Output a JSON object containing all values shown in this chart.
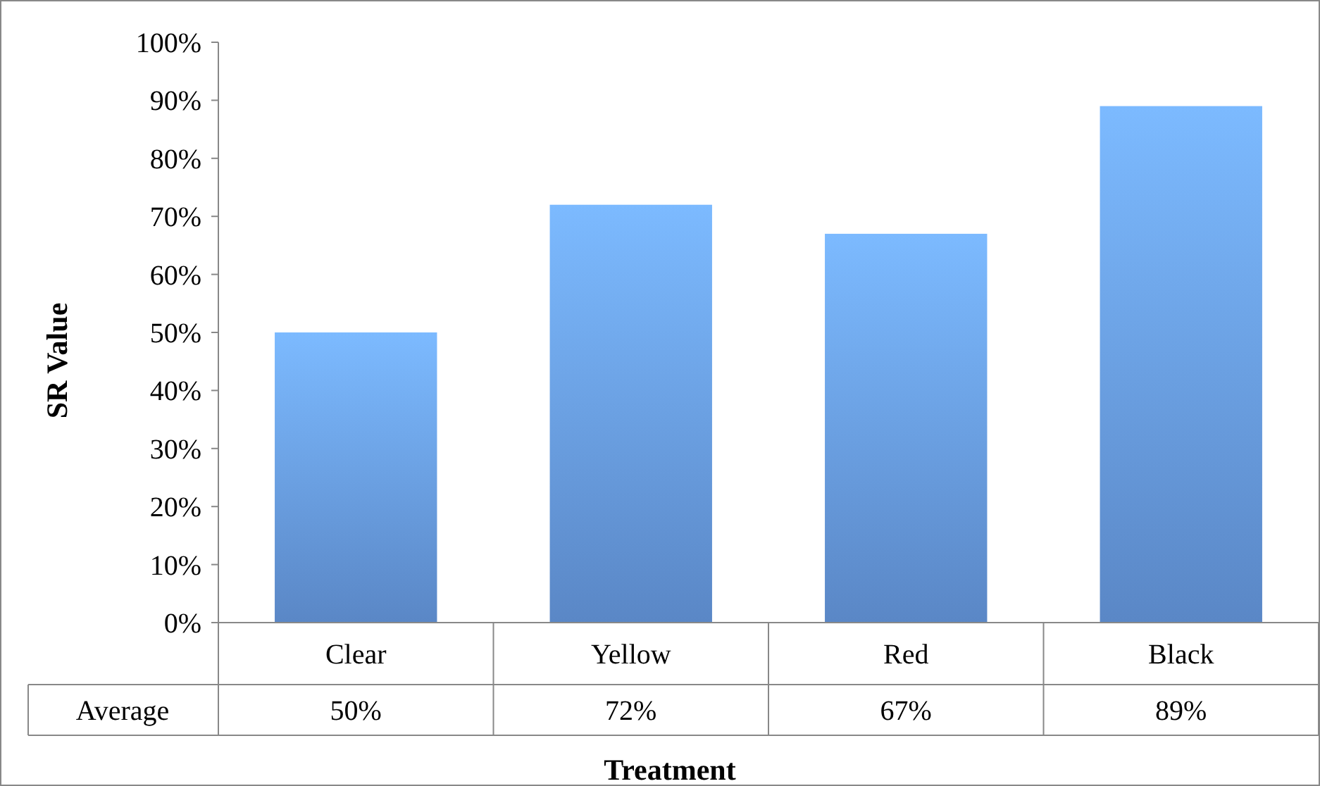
{
  "chart_data": {
    "type": "bar",
    "xlabel": "Treatment",
    "ylabel": "SR Value",
    "categories": [
      "Clear",
      "Yellow",
      "Red",
      "Black"
    ],
    "series": [
      {
        "name": "Average",
        "color": "#6a9ee9",
        "values": [
          50,
          72,
          67,
          89
        ],
        "value_labels": [
          "50%",
          "72%",
          "67%",
          "89%"
        ]
      }
    ],
    "ylim": [
      0,
      100
    ],
    "yticks": [
      {
        "value": 0,
        "label": "0%"
      },
      {
        "value": 10,
        "label": "10%"
      },
      {
        "value": 20,
        "label": "20%"
      },
      {
        "value": 30,
        "label": "30%"
      },
      {
        "value": 40,
        "label": "40%"
      },
      {
        "value": 50,
        "label": "50%"
      },
      {
        "value": 60,
        "label": "60%"
      },
      {
        "value": 70,
        "label": "70%"
      },
      {
        "value": 80,
        "label": "80%"
      },
      {
        "value": 90,
        "label": "90%"
      },
      {
        "value": 100,
        "label": "100%"
      }
    ],
    "grid": false
  }
}
